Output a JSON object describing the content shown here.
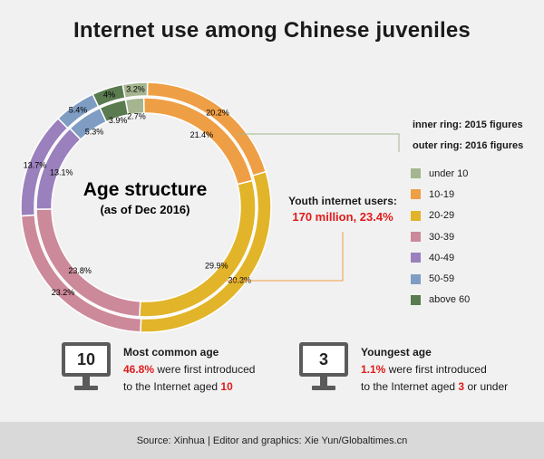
{
  "title": "Internet use among Chinese juveniles",
  "center": {
    "title": "Age structure",
    "subtitle": "(as of Dec 2016)"
  },
  "ring_captions": {
    "inner": "inner ring: 2015 figures",
    "outer": "outer ring: 2016 figures"
  },
  "callout": {
    "title": "Youth internet users:",
    "value": "170 million, 23.4%"
  },
  "chart_data": {
    "type": "pie",
    "variant": "double-donut",
    "title": "Age structure",
    "subtitle": "(as of Dec 2016)",
    "categories": [
      "under 10",
      "10-19",
      "20-29",
      "30-39",
      "40-49",
      "50-59",
      "above 60"
    ],
    "colors": [
      "#a5b590",
      "#ee9f45",
      "#e2b42a",
      "#cc899a",
      "#9a80bd",
      "#7f9dc3",
      "#5a7a4f"
    ],
    "series": [
      {
        "name": "inner ring: 2015 figures",
        "labels": [
          "2.7%",
          "21.4%",
          "29.9%",
          "23.8%",
          "13.1%",
          "5.3%",
          "3.9%"
        ],
        "values": [
          2.7,
          21.4,
          29.9,
          23.8,
          13.1,
          5.3,
          3.9
        ]
      },
      {
        "name": "outer ring: 2016 figures",
        "labels": [
          "3.2%",
          "20.2%",
          "30.3%",
          "23.2%",
          "13.7%",
          "5.4%",
          "4%"
        ],
        "values": [
          3.2,
          20.2,
          30.3,
          23.2,
          13.7,
          5.4,
          4.0
        ]
      }
    ],
    "legend_position": "right"
  },
  "facts": [
    {
      "icon_text": "10",
      "heading": "Most common age",
      "highlight": "46.8%",
      "line1_rest": " were first introduced",
      "line2_pre": "to the Internet aged ",
      "line2_highlight": "10",
      "line2_post": ""
    },
    {
      "icon_text": "3",
      "heading": "Youngest age",
      "highlight": "1.1%",
      "line1_rest": " were first introduced",
      "line2_pre": "to the Internet aged ",
      "line2_highlight": "3",
      "line2_post": " or under"
    }
  ],
  "footer": "Source: Xinhua   |   Editor and graphics: Xie Yun/Globaltimes.cn"
}
